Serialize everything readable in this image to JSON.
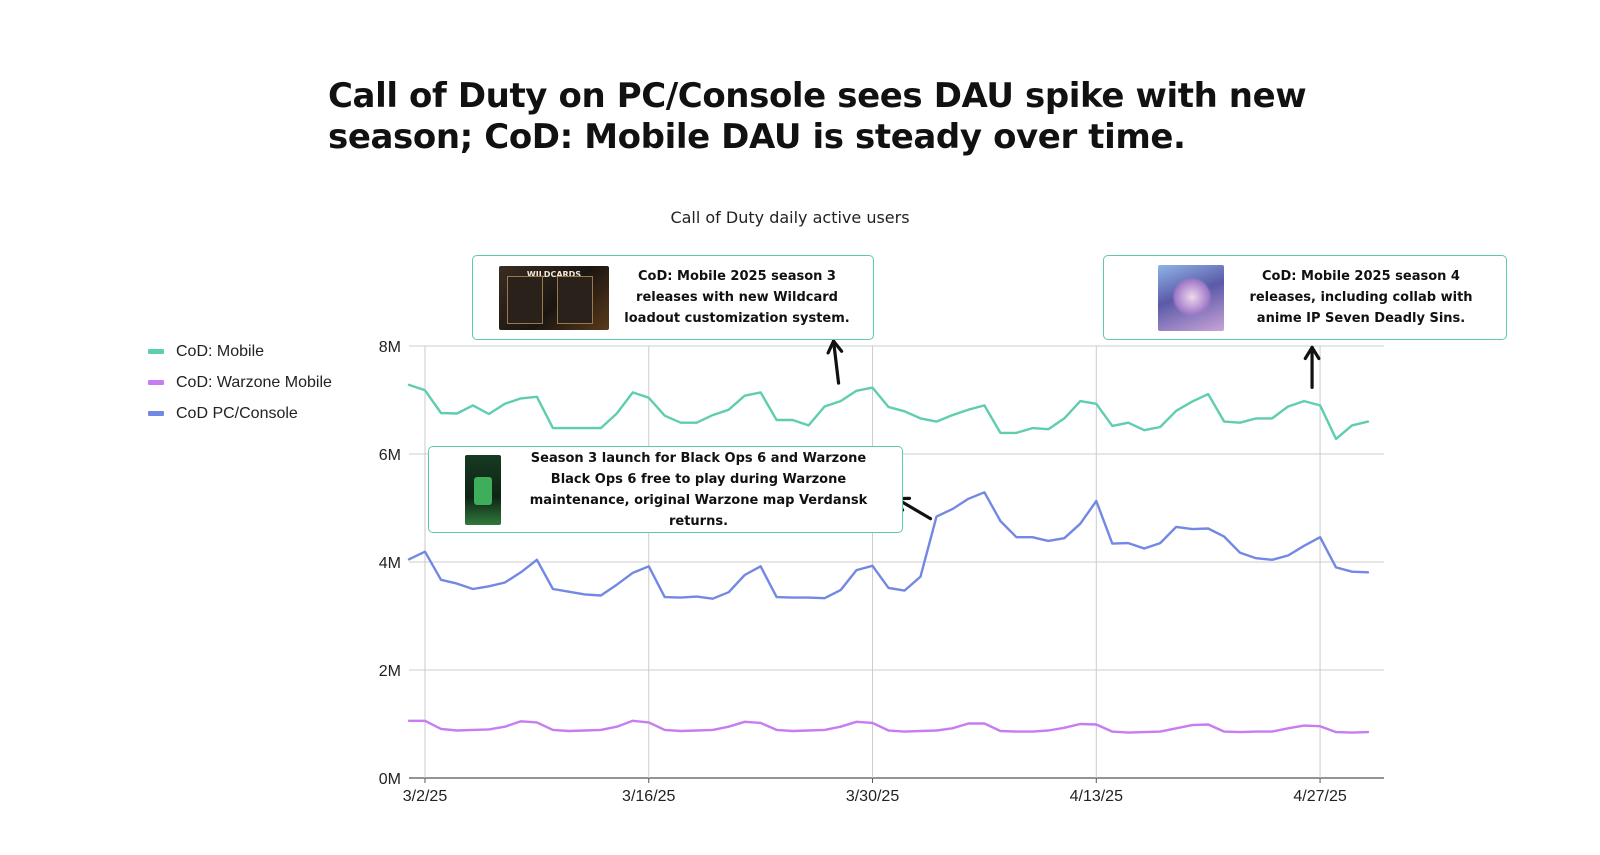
{
  "headline": {
    "line1": "Call of Duty on PC/Console sees DAU spike with new",
    "line2": "season; CoD: Mobile DAU is steady over time."
  },
  "colors": {
    "mobile": "#5fcdb0",
    "warzone": "#c77cf2",
    "pc": "#7388e4",
    "callout_border": "#5fc8ad",
    "grid": "#cccccc"
  },
  "legend": [
    {
      "name": "CoD: Mobile",
      "color_key": "mobile"
    },
    {
      "name": "CoD: Warzone Mobile",
      "color_key": "warzone"
    },
    {
      "name": "CoD PC/Console",
      "color_key": "pc"
    }
  ],
  "annotations": [
    {
      "id": "callout-1",
      "text": "CoD: Mobile 2025 season 3 releases with new Wildcard loadout customization system.",
      "thumb_label": "WILDCARDS",
      "thumb_icon": "wildcards-artwork-icon",
      "arrow_date": "2025-03-28",
      "series": "CoD: Mobile"
    },
    {
      "id": "callout-2",
      "text": "CoD: Mobile 2025 season 4 releases, including collab with anime IP Seven Deadly Sins.",
      "thumb_label": "",
      "thumb_icon": "anime-collab-artwork-icon",
      "arrow_date": "2025-04-27",
      "series": "CoD: Mobile"
    },
    {
      "id": "callout-3",
      "text": "Season 3 launch for Black Ops 6 and Warzone Black Ops 6 free to play during Warzone maintenance, original Warzone map Verdansk returns.",
      "thumb_label": "",
      "thumb_icon": "black-ops-6-artwork-icon",
      "arrow_date": "2025-04-03",
      "series": "CoD PC/Console"
    }
  ],
  "chart_data": {
    "type": "line",
    "title": "Call of Duty daily active users",
    "x_start": "2025-03-01",
    "x_end": "2025-05-01",
    "x_ticks": [
      {
        "date": "2025-03-02",
        "label": "3/2/25"
      },
      {
        "date": "2025-03-16",
        "label": "3/16/25"
      },
      {
        "date": "2025-03-30",
        "label": "3/30/25"
      },
      {
        "date": "2025-04-13",
        "label": "4/13/25"
      },
      {
        "date": "2025-04-27",
        "label": "4/27/25"
      }
    ],
    "ylim": [
      0,
      8000000
    ],
    "y_ticks": [
      {
        "value": 0,
        "label": "0M"
      },
      {
        "value": 2000000,
        "label": "2M"
      },
      {
        "value": 4000000,
        "label": "4M"
      },
      {
        "value": 6000000,
        "label": "6M"
      },
      {
        "value": 8000000,
        "label": "8M"
      }
    ],
    "grid": true,
    "legend_position": "left",
    "series": [
      {
        "name": "CoD: Mobile",
        "color": "#5fcdb0",
        "start_date": "2025-03-01",
        "values": [
          7.28,
          7.18,
          6.76,
          6.75,
          6.9,
          6.74,
          6.93,
          7.03,
          7.06,
          6.48,
          6.48,
          6.48,
          6.48,
          6.75,
          7.14,
          7.04,
          6.71,
          6.58,
          6.58,
          6.72,
          6.82,
          7.08,
          7.14,
          6.63,
          6.63,
          6.53,
          6.88,
          6.98,
          7.17,
          7.23,
          6.87,
          6.79,
          6.66,
          6.6,
          6.72,
          6.82,
          6.9,
          6.39,
          6.39,
          6.48,
          6.46,
          6.66,
          6.98,
          6.93,
          6.52,
          6.58,
          6.44,
          6.5,
          6.8,
          6.97,
          7.11,
          6.6,
          6.58,
          6.66,
          6.66,
          6.88,
          6.98,
          6.9,
          6.28,
          6.53,
          6.6
        ]
      },
      {
        "name": "CoD: Warzone Mobile",
        "color": "#c77cf2",
        "start_date": "2025-03-01",
        "values": [
          1.06,
          1.06,
          0.91,
          0.88,
          0.89,
          0.9,
          0.95,
          1.05,
          1.03,
          0.89,
          0.87,
          0.88,
          0.89,
          0.95,
          1.06,
          1.03,
          0.89,
          0.87,
          0.88,
          0.89,
          0.95,
          1.04,
          1.02,
          0.89,
          0.87,
          0.88,
          0.89,
          0.95,
          1.04,
          1.02,
          0.88,
          0.86,
          0.87,
          0.88,
          0.92,
          1.01,
          1.01,
          0.87,
          0.86,
          0.86,
          0.88,
          0.93,
          1.0,
          0.99,
          0.86,
          0.84,
          0.85,
          0.86,
          0.92,
          0.98,
          0.99,
          0.86,
          0.85,
          0.86,
          0.86,
          0.92,
          0.97,
          0.96,
          0.85,
          0.84,
          0.85
        ]
      },
      {
        "name": "CoD PC/Console",
        "color": "#7388e4",
        "start_date": "2025-03-01",
        "values": [
          4.05,
          4.19,
          3.67,
          3.6,
          3.5,
          3.55,
          3.62,
          3.81,
          4.04,
          3.5,
          3.45,
          3.4,
          3.38,
          3.58,
          3.8,
          3.92,
          3.35,
          3.34,
          3.36,
          3.32,
          3.44,
          3.76,
          3.92,
          3.35,
          3.34,
          3.34,
          3.33,
          3.48,
          3.85,
          3.93,
          3.52,
          3.47,
          3.73,
          4.84,
          4.98,
          5.17,
          5.29,
          4.76,
          4.46,
          4.46,
          4.39,
          4.44,
          4.71,
          5.13,
          4.34,
          4.35,
          4.25,
          4.35,
          4.65,
          4.61,
          4.62,
          4.47,
          4.17,
          4.07,
          4.04,
          4.12,
          4.3,
          4.46,
          3.9,
          3.82,
          3.81
        ]
      }
    ]
  }
}
